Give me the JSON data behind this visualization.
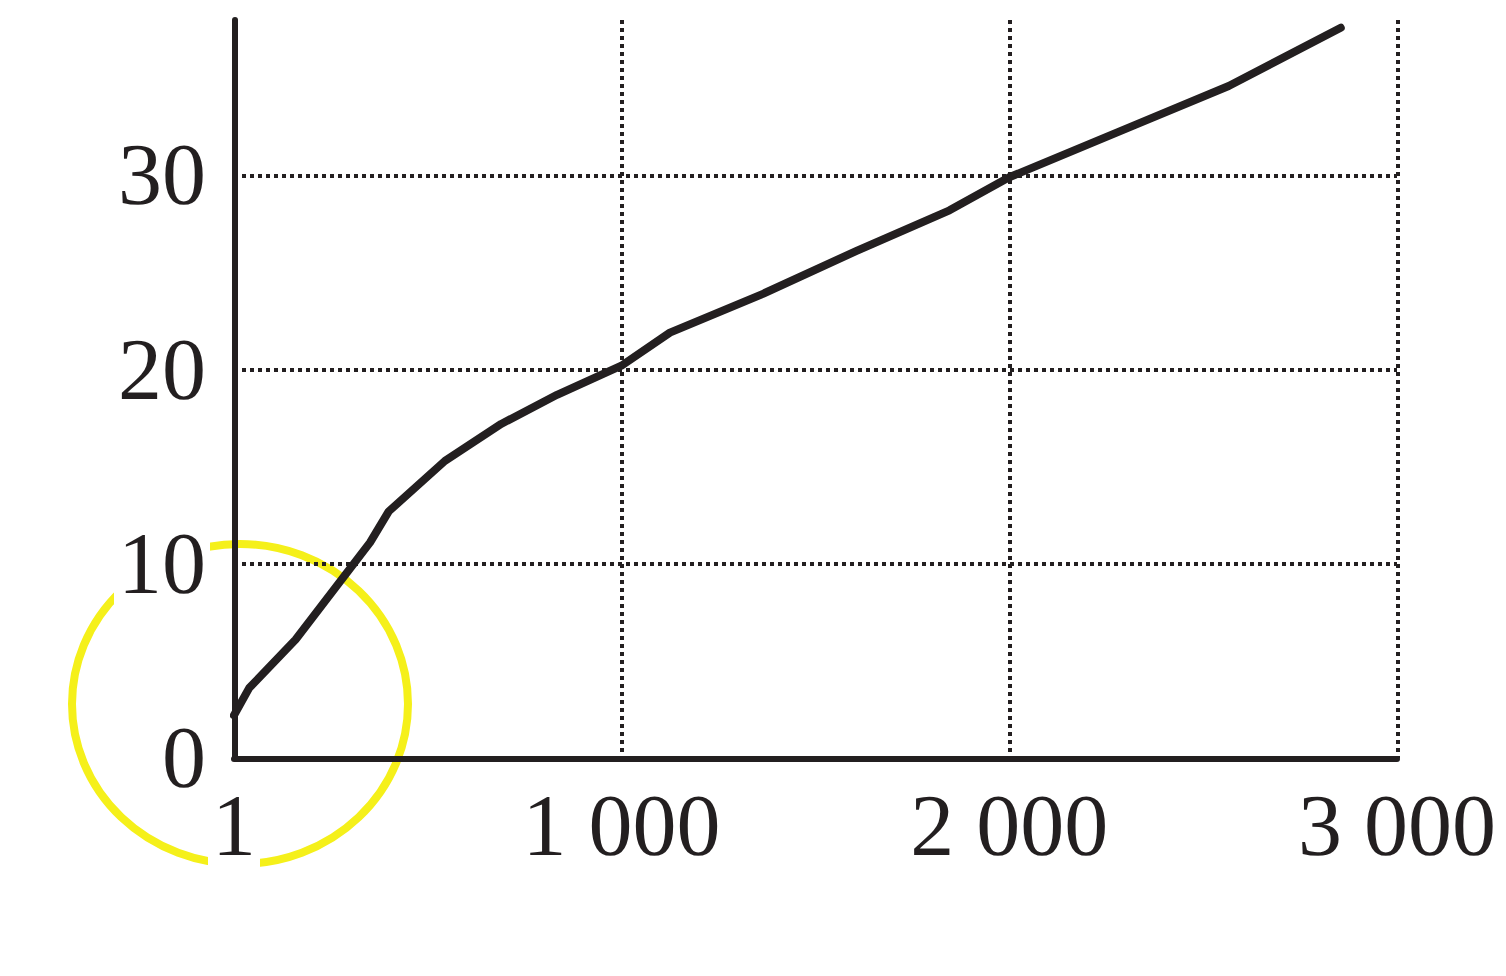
{
  "chart_data": {
    "type": "line",
    "x": [
      1,
      40,
      160,
      352,
      400,
      545,
      690,
      834,
      1000,
      1125,
      1365,
      1605,
      1846,
      2000,
      2325,
      2566,
      2855
    ],
    "series": [
      {
        "color": "#231f20",
        "values": [
          2.2,
          3.6,
          6.1,
          11.1,
          12.7,
          15.3,
          17.2,
          18.7,
          20.2,
          21.9,
          23.9,
          26.1,
          28.2,
          29.9,
          32.6,
          34.6,
          37.6
        ]
      }
    ],
    "xlim": [
      1,
      3000
    ],
    "xticks": [
      1,
      {
        "value": 1000,
        "label": "1 000"
      },
      {
        "value": 2000,
        "label": "2 000"
      },
      {
        "value": 3000,
        "label": "3 000"
      }
    ],
    "ylim": [
      0,
      38
    ],
    "yticks": [
      0,
      10,
      20,
      30
    ],
    "grid": true,
    "marker": "none",
    "line_style": "solid"
  }
}
